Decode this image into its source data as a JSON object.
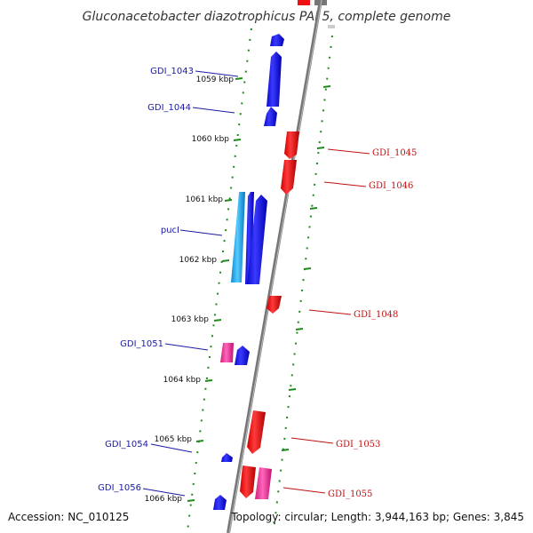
{
  "title": "Gluconacetobacter diazotrophicus PAl 5, complete genome",
  "footer": {
    "accession": "Accession: NC_010125",
    "topology": "Topology: circular; Length: 3,944,163 bp; Genes: 3,845"
  },
  "ticks": [
    "1059 kbp",
    "1060 kbp",
    "1061 kbp",
    "1062 kbp",
    "1063 kbp",
    "1064 kbp",
    "1065 kbp",
    "1066 kbp"
  ],
  "genes_left": [
    "GDI_1043",
    "GDI_1044",
    "pucI",
    "GDI_1051",
    "GDI_1054",
    "GDI_1056"
  ],
  "genes_right": [
    "GDI_1045",
    "GDI_1046",
    "GDI_1048",
    "GDI_1053",
    "GDI_1055"
  ],
  "colors": {
    "forward": "#1010e6",
    "reverse": "#ee1111",
    "light_blue": "#22aaee",
    "pink": "#ee3399",
    "dots": "#1e8a1e",
    "backbone": "#888888",
    "label_left": "#1a1aa6",
    "label_right": "#c01010"
  }
}
